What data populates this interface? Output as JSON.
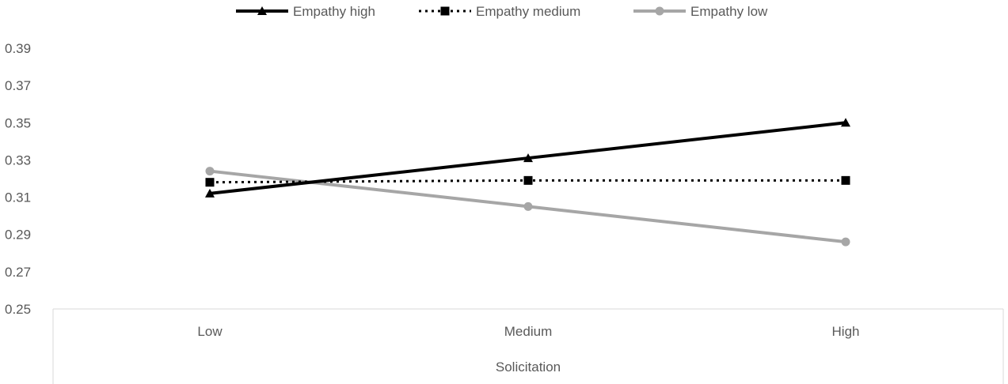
{
  "chart_data": {
    "type": "line",
    "title": "",
    "xlabel": "Solicitation",
    "ylabel": "",
    "categories": [
      "Low",
      "Medium",
      "High"
    ],
    "ylim": [
      0.25,
      0.39
    ],
    "yticks": [
      "0.25",
      "0.27",
      "0.29",
      "0.31",
      "0.33",
      "0.35",
      "0.37",
      "0.39"
    ],
    "grid": false,
    "legend_position": "top",
    "series": [
      {
        "name": "Empathy high",
        "values": [
          0.312,
          0.331,
          0.35
        ],
        "color": "#000000",
        "line_style": "solid",
        "marker": "triangle"
      },
      {
        "name": "Empathy medium",
        "values": [
          0.318,
          0.319,
          0.319
        ],
        "color": "#000000",
        "line_style": "dotted",
        "marker": "square"
      },
      {
        "name": "Empathy low",
        "values": [
          0.324,
          0.305,
          0.286
        ],
        "color": "#a6a6a6",
        "line_style": "solid",
        "marker": "circle"
      }
    ]
  }
}
